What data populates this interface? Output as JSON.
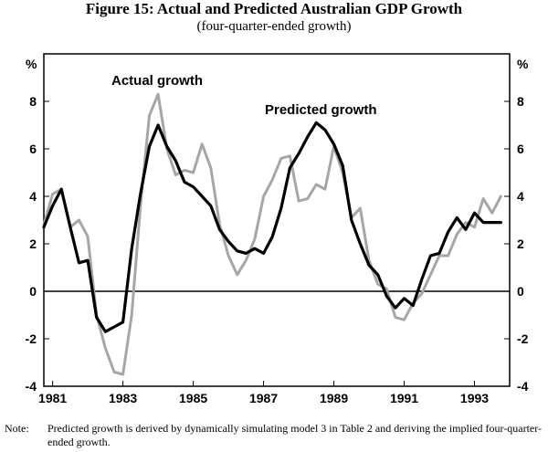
{
  "chart_data": {
    "type": "line",
    "title": "Figure 15: Actual and Predicted Australian GDP Growth",
    "subtitle": "(four-quarter-ended growth)",
    "ylabel_left": "%",
    "ylabel_right": "%",
    "ylim": [
      -4,
      10
    ],
    "yticks": [
      -4,
      -2,
      0,
      2,
      4,
      6,
      8
    ],
    "xlim": [
      1980.75,
      1994.0
    ],
    "xticks": [
      1981,
      1983,
      1985,
      1987,
      1989,
      1991,
      1993
    ],
    "xtick_labels": [
      "1981",
      "1983",
      "1985",
      "1987",
      "1989",
      "1991",
      "1993"
    ],
    "zero_line": true,
    "annotations": [
      {
        "text": "Actual growth",
        "series": "Actual growth"
      },
      {
        "text": "Predicted growth",
        "series": "Predicted growth"
      }
    ],
    "series": [
      {
        "name": "Actual growth",
        "color": "#a6a6a6",
        "x": [
          1980.75,
          1981.0,
          1981.25,
          1981.5,
          1981.75,
          1982.0,
          1982.25,
          1982.5,
          1982.75,
          1983.0,
          1983.25,
          1983.5,
          1983.75,
          1984.0,
          1984.25,
          1984.5,
          1984.75,
          1985.0,
          1985.25,
          1985.5,
          1985.75,
          1986.0,
          1986.25,
          1986.5,
          1986.75,
          1987.0,
          1987.25,
          1987.5,
          1987.75,
          1988.0,
          1988.25,
          1988.5,
          1988.75,
          1989.0,
          1989.25,
          1989.5,
          1989.75,
          1990.0,
          1990.25,
          1990.5,
          1990.75,
          1991.0,
          1991.25,
          1991.5,
          1991.75,
          1992.0,
          1992.25,
          1992.5,
          1992.75,
          1993.0,
          1993.25,
          1993.5,
          1993.75
        ],
        "values": [
          2.8,
          4.1,
          4.3,
          2.7,
          3.0,
          2.3,
          -1.0,
          -2.4,
          -3.4,
          -3.5,
          -1.0,
          3.6,
          7.4,
          8.3,
          6.0,
          4.9,
          5.1,
          5.0,
          6.2,
          5.2,
          2.8,
          1.5,
          0.7,
          1.3,
          2.2,
          4.0,
          4.7,
          5.6,
          5.7,
          3.8,
          3.9,
          4.5,
          4.3,
          6.1,
          5.0,
          3.1,
          3.5,
          1.3,
          0.3,
          0.1,
          -1.1,
          -1.2,
          -0.5,
          -0.1,
          0.7,
          1.5,
          1.5,
          2.4,
          2.9,
          2.7,
          3.9,
          3.3,
          4.0
        ]
      },
      {
        "name": "Predicted growth",
        "color": "#000000",
        "x": [
          1980.75,
          1981.0,
          1981.25,
          1981.5,
          1981.75,
          1982.0,
          1982.25,
          1982.5,
          1982.75,
          1983.0,
          1983.25,
          1983.5,
          1983.75,
          1984.0,
          1984.25,
          1984.5,
          1984.75,
          1985.0,
          1985.25,
          1985.5,
          1985.75,
          1986.0,
          1986.25,
          1986.5,
          1986.75,
          1987.0,
          1987.25,
          1987.5,
          1987.75,
          1988.0,
          1988.25,
          1988.5,
          1988.75,
          1989.0,
          1989.25,
          1989.5,
          1989.75,
          1990.0,
          1990.25,
          1990.5,
          1990.75,
          1991.0,
          1991.25,
          1991.5,
          1991.75,
          1992.0,
          1992.25,
          1992.5,
          1992.75,
          1993.0,
          1993.25,
          1993.5,
          1993.75
        ],
        "values": [
          2.7,
          3.6,
          4.3,
          2.7,
          1.2,
          1.3,
          -1.1,
          -1.7,
          -1.5,
          -1.3,
          1.8,
          4.1,
          6.1,
          7.0,
          6.1,
          5.5,
          4.6,
          4.4,
          4.0,
          3.6,
          2.6,
          2.1,
          1.7,
          1.6,
          1.8,
          1.6,
          2.3,
          3.5,
          5.2,
          5.8,
          6.5,
          7.1,
          6.8,
          6.2,
          5.3,
          3.0,
          2.0,
          1.1,
          0.7,
          -0.2,
          -0.7,
          -0.3,
          -0.6,
          0.5,
          1.5,
          1.6,
          2.5,
          3.1,
          2.6,
          3.3,
          2.9,
          2.9,
          2.9
        ]
      }
    ]
  },
  "note": {
    "label": "Note:",
    "text": "Predicted growth is derived by dynamically simulating model 3 in Table 2 and deriving the implied four-quarter-ended growth."
  }
}
